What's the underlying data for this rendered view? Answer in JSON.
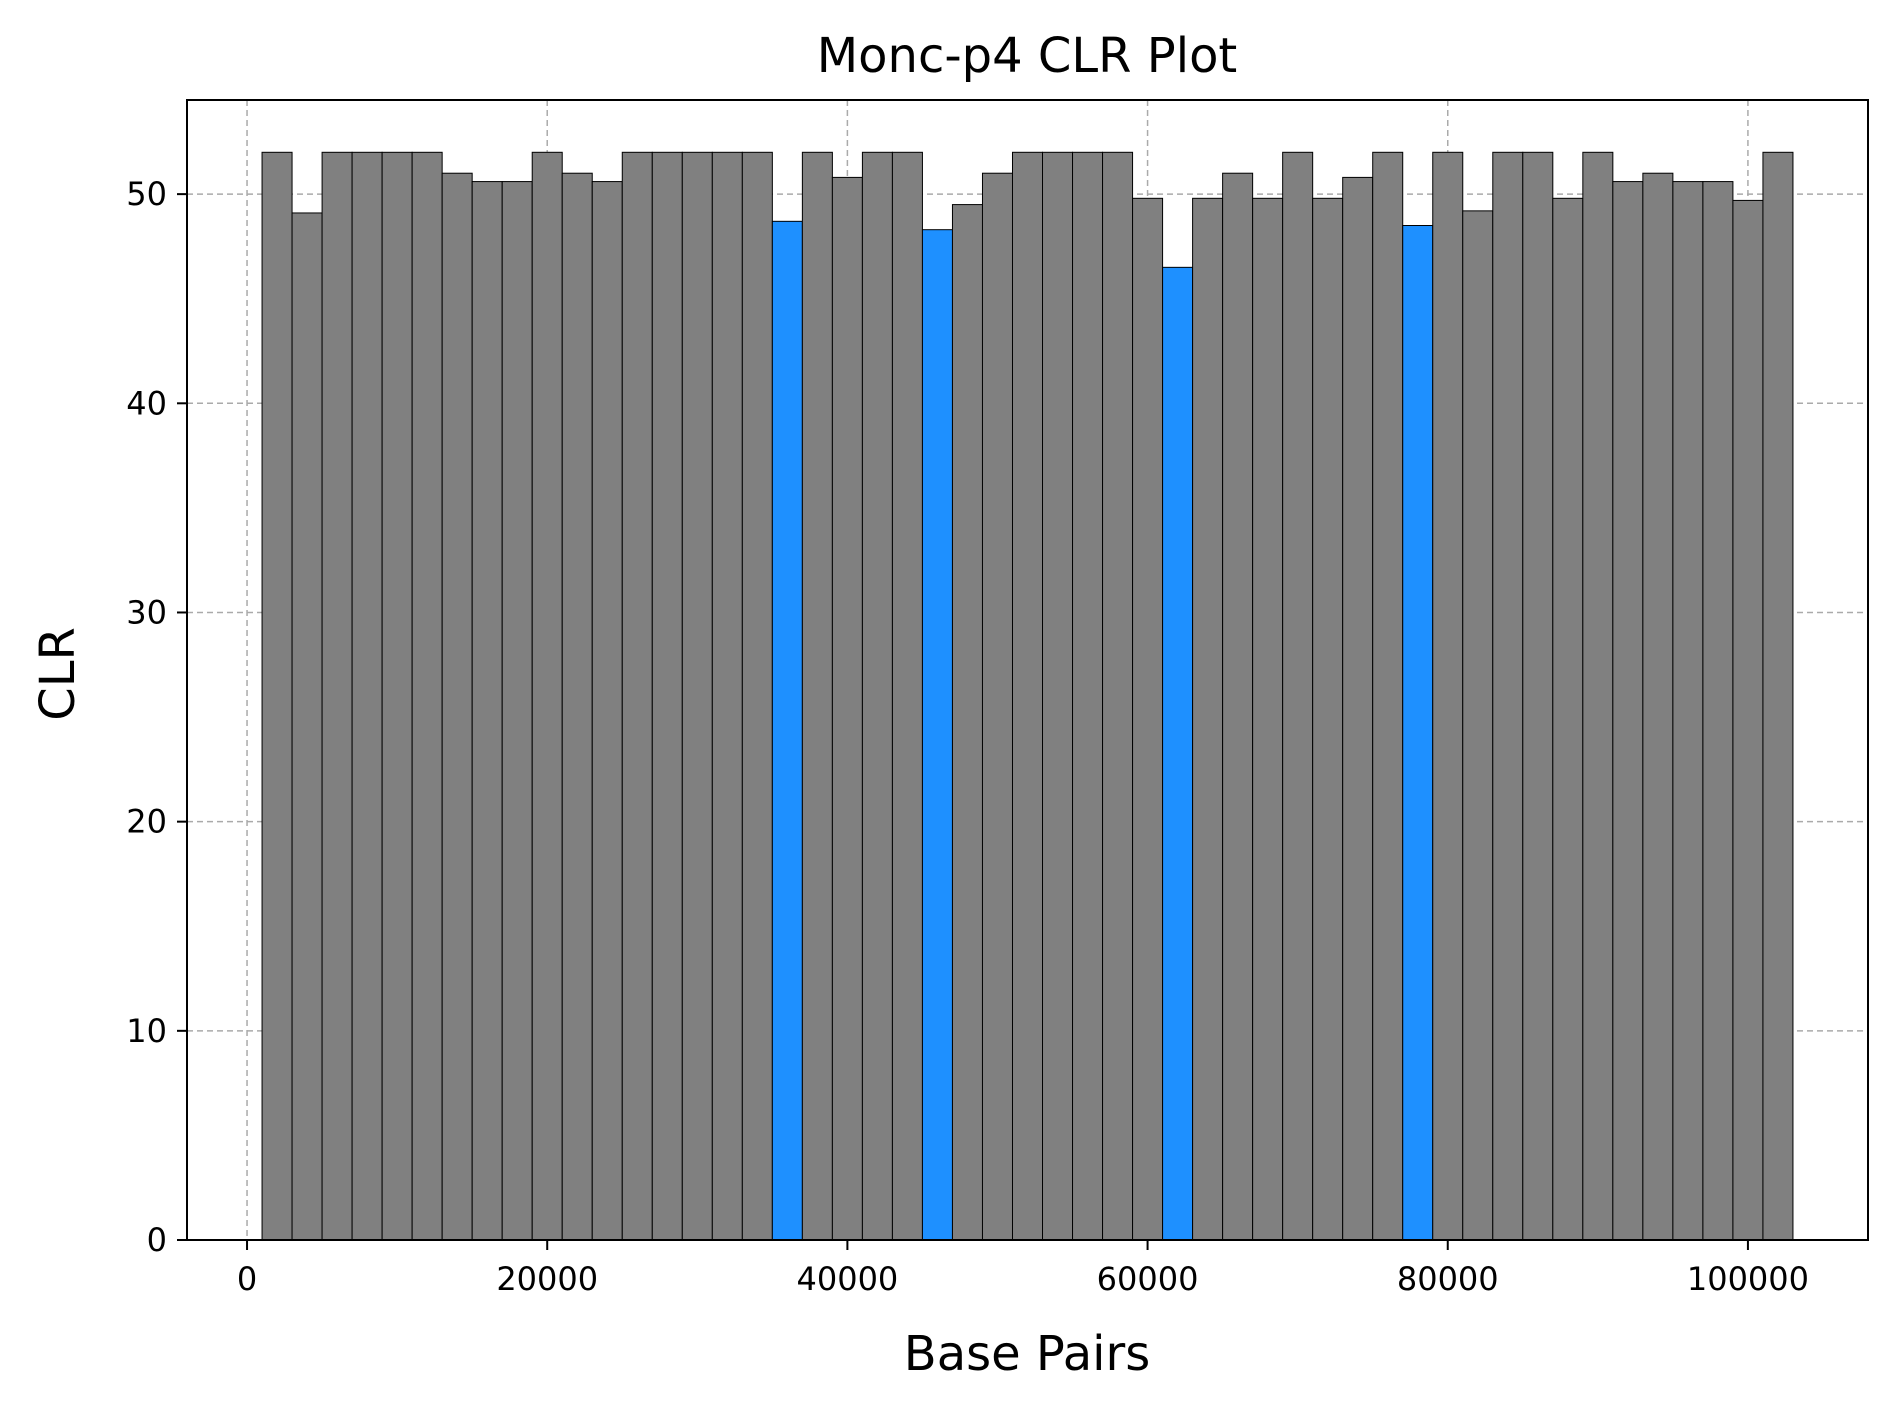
{
  "chart_data": {
    "type": "bar",
    "title": "Monc-p4 CLR Plot",
    "xlabel": "Base Pairs",
    "ylabel": "CLR",
    "xlim": [
      -4000,
      108000
    ],
    "ylim": [
      0,
      54.5
    ],
    "xticks": [
      0,
      20000,
      40000,
      60000,
      80000,
      100000
    ],
    "yticks": [
      0,
      10,
      20,
      30,
      40,
      50
    ],
    "grid": true,
    "bin_width": 2000,
    "colors": {
      "default": "#808080",
      "highlight": "#1e90ff"
    },
    "x": [
      2000,
      4000,
      6000,
      8000,
      10000,
      12000,
      14000,
      16000,
      18000,
      20000,
      22000,
      24000,
      26000,
      28000,
      30000,
      32000,
      34000,
      36000,
      38000,
      40000,
      42000,
      44000,
      46000,
      48000,
      50000,
      52000,
      54000,
      56000,
      58000,
      60000,
      62000,
      64000,
      66000,
      68000,
      70000,
      72000,
      74000,
      76000,
      78000,
      80000,
      82000,
      84000,
      86000,
      88000,
      90000,
      92000,
      94000,
      96000,
      98000,
      100000,
      102000
    ],
    "values": [
      52.0,
      49.1,
      52.0,
      52.0,
      52.0,
      52.0,
      51.0,
      50.6,
      50.6,
      52.0,
      51.0,
      50.6,
      52.0,
      52.0,
      52.0,
      52.0,
      52.0,
      48.7,
      52.0,
      50.8,
      52.0,
      52.0,
      48.3,
      49.5,
      51.0,
      52.0,
      52.0,
      52.0,
      52.0,
      49.8,
      46.5,
      49.8,
      51.0,
      49.8,
      52.0,
      49.8,
      50.8,
      52.0,
      48.5,
      52.0,
      49.2,
      52.0,
      52.0,
      49.8,
      52.0,
      50.6,
      51.0,
      50.6,
      50.6,
      49.7,
      52.0
    ],
    "highlighted": [
      false,
      false,
      false,
      false,
      false,
      false,
      false,
      false,
      false,
      false,
      false,
      false,
      false,
      false,
      false,
      false,
      false,
      true,
      false,
      false,
      false,
      false,
      true,
      false,
      false,
      false,
      false,
      false,
      false,
      false,
      true,
      false,
      false,
      false,
      false,
      false,
      false,
      false,
      true,
      false,
      false,
      false,
      false,
      false,
      false,
      false,
      false,
      false,
      false,
      false,
      false
    ]
  }
}
